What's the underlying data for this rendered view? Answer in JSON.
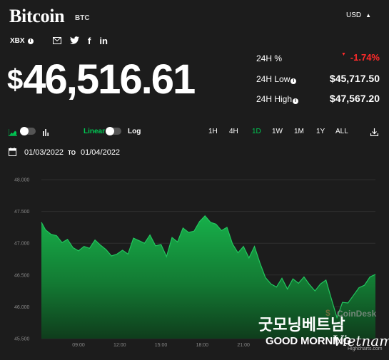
{
  "header": {
    "title": "Bitcoin",
    "ticker": "BTC",
    "currency": "USD",
    "exchange": "XBX",
    "share_icons": [
      "mail-icon",
      "twitter-icon",
      "facebook-icon",
      "linkedin-icon"
    ]
  },
  "price": {
    "dollar_sign": "$",
    "value": "46,516.61"
  },
  "stats": {
    "change_label": "24H %",
    "change_value": "-1.74%",
    "low_label": "24H Low",
    "low_value": "$45,717.50",
    "high_label": "24H High",
    "high_value": "$47,567.20",
    "negative_color": "#ff2a2a"
  },
  "toolbar": {
    "linear_label": "Linear",
    "log_label": "Log",
    "ranges": [
      "1H",
      "4H",
      "1D",
      "1W",
      "1M",
      "1Y",
      "ALL"
    ],
    "active_range": "1D",
    "active_color": "#00c853"
  },
  "dates": {
    "from": "01/03/2022",
    "to_label": "TO",
    "to": "01/04/2022"
  },
  "chart_data": {
    "type": "area",
    "title": "",
    "xlabel": "",
    "ylabel": "",
    "ylim": [
      45500,
      48000
    ],
    "y_ticks": [
      "48.000",
      "47.500",
      "47.000",
      "46.500",
      "46.000",
      "45.500"
    ],
    "x_ticks": [
      "09:00",
      "12:00",
      "15:00",
      "18:00",
      "21:00"
    ],
    "x_tick_hours": [
      9,
      12,
      15,
      18,
      21
    ],
    "xlim_hours": [
      6.3,
      30.6
    ],
    "line_color": "#22c55e",
    "x_hours": [
      6.3,
      6.6,
      7.0,
      7.4,
      7.8,
      8.2,
      8.6,
      9.0,
      9.4,
      9.8,
      10.2,
      10.6,
      11.0,
      11.4,
      11.8,
      12.2,
      12.6,
      13.0,
      13.4,
      13.8,
      14.2,
      14.6,
      15.0,
      15.4,
      15.8,
      16.2,
      16.6,
      17.0,
      17.4,
      17.8,
      18.2,
      18.6,
      19.0,
      19.4,
      19.8,
      20.2,
      20.6,
      21.0,
      21.4,
      21.8,
      22.2,
      22.6,
      23.0,
      23.4,
      23.8,
      24.2,
      24.6,
      25.0,
      25.4,
      25.8,
      26.2,
      26.6,
      27.0,
      27.4,
      27.8,
      28.2,
      28.6,
      29.0,
      29.4,
      29.8,
      30.2,
      30.6
    ],
    "values": [
      47330,
      47210,
      47140,
      47120,
      47010,
      47060,
      46930,
      46880,
      46950,
      46920,
      47050,
      46970,
      46900,
      46800,
      46830,
      46890,
      46830,
      47080,
      47040,
      47000,
      47130,
      46960,
      46980,
      46790,
      47090,
      47020,
      47240,
      47170,
      47190,
      47340,
      47430,
      47330,
      47300,
      47200,
      47250,
      46990,
      46850,
      46950,
      46770,
      46950,
      46690,
      46460,
      46360,
      46310,
      46450,
      46280,
      46440,
      46370,
      46470,
      46350,
      46250,
      46360,
      46420,
      46120,
      45830,
      46070,
      46060,
      46180,
      46300,
      46340,
      46470,
      46510
    ]
  },
  "watermarks": {
    "coindesk": "CoinDesk",
    "coindesk_symbol": "$",
    "korean": "굿모닝베트남",
    "good_morning": "GOOD MORNING",
    "vietnam": "Vietnam",
    "highcharts": "Highcharts.com"
  }
}
